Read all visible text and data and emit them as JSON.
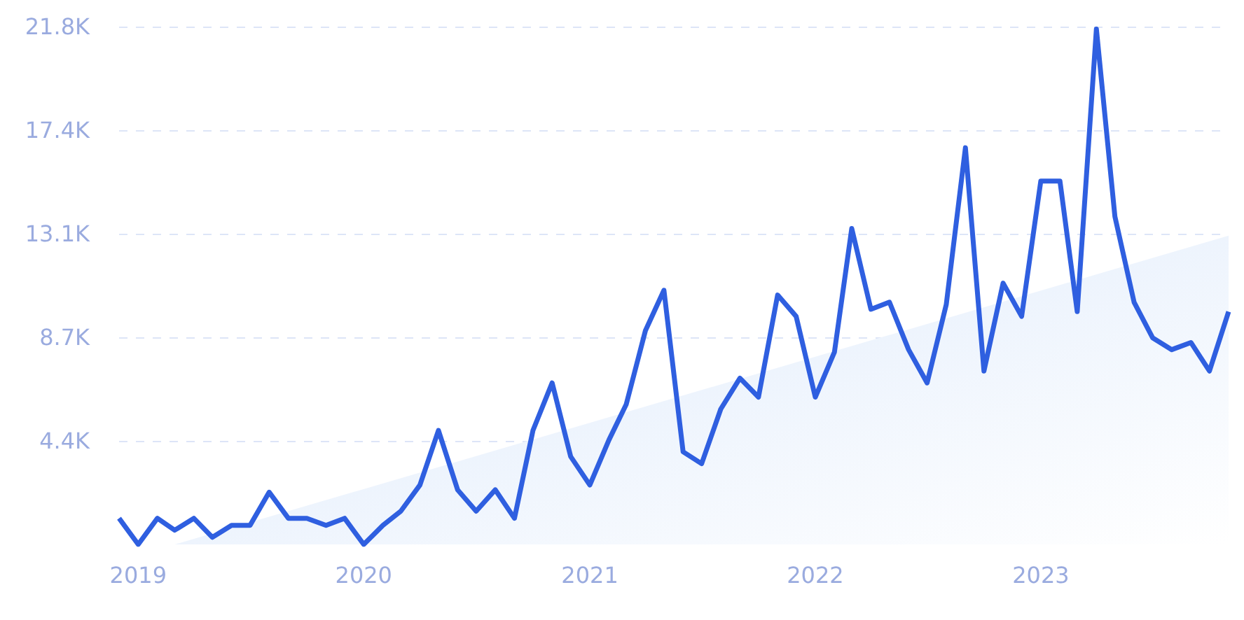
{
  "chart_data": {
    "type": "line",
    "x": [
      "2018-12",
      "2019-01",
      "2019-02",
      "2019-03",
      "2019-04",
      "2019-05",
      "2019-06",
      "2019-07",
      "2019-08",
      "2019-09",
      "2019-10",
      "2019-11",
      "2019-12",
      "2020-01",
      "2020-02",
      "2020-03",
      "2020-04",
      "2020-05",
      "2020-06",
      "2020-07",
      "2020-08",
      "2020-09",
      "2020-10",
      "2020-11",
      "2020-12",
      "2021-01",
      "2021-02",
      "2021-03",
      "2021-04",
      "2021-05",
      "2021-06",
      "2021-07",
      "2021-08",
      "2021-09",
      "2021-10",
      "2021-11",
      "2021-12",
      "2022-01",
      "2022-02",
      "2022-03",
      "2022-04",
      "2022-05",
      "2022-06",
      "2022-07",
      "2022-08",
      "2022-09",
      "2022-10",
      "2022-11",
      "2022-12",
      "2023-01",
      "2023-02",
      "2023-03",
      "2023-04",
      "2023-05",
      "2023-06",
      "2023-07",
      "2023-08",
      "2023-09",
      "2023-10",
      "2023-11"
    ],
    "series": [
      {
        "type": "area",
        "x": [
          "2019-03",
          "2023-11"
        ],
        "color": "#dce9fb",
        "values": [
          0,
          13000
        ]
      },
      {
        "color": "#2f5fe0",
        "values": [
          1100,
          0,
          1100,
          600,
          1100,
          300,
          800,
          800,
          2200,
          1100,
          1100,
          800,
          1100,
          0,
          800,
          1400,
          2500,
          4800,
          2300,
          1400,
          2300,
          1100,
          4800,
          6800,
          3700,
          2500,
          4400,
          5900,
          9000,
          10700,
          3900,
          3400,
          5700,
          7000,
          6200,
          10500,
          9600,
          6200,
          8100,
          13300,
          9900,
          10200,
          8200,
          6800,
          10100,
          16700,
          7300,
          11000,
          9600,
          15300,
          15300,
          9800,
          21700,
          13800,
          10200,
          8700,
          8200,
          8500,
          7300,
          9800
        ]
      }
    ],
    "xlim": [
      "2018-12",
      "2023-11"
    ],
    "xticks": [
      "2019",
      "2020",
      "2021",
      "2022",
      "2023"
    ],
    "ylim": [
      0,
      21800
    ],
    "yticks": [
      {
        "value": 4360,
        "label": "4.4K"
      },
      {
        "value": 8720,
        "label": "8.7K"
      },
      {
        "value": 13080,
        "label": "13.1K"
      },
      {
        "value": 17440,
        "label": "17.4K"
      },
      {
        "value": 21800,
        "label": "21.8K"
      }
    ],
    "grid": "y",
    "marker": "none"
  }
}
